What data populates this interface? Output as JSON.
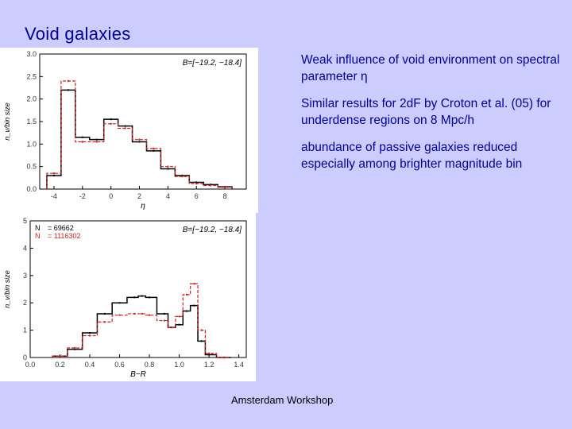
{
  "slide": {
    "title": "Void galaxies",
    "bullets": [
      "Weak influence of void environment on spectral parameter η",
      "Similar results for 2dF by Croton et al. (05) for underdense regions on 8 Mpc/h",
      "abundance of passive galaxies reduced especially among brighter magnitude bin"
    ],
    "footer": "Amsterdam Workshop"
  },
  "colors": {
    "background": "#ccccff",
    "text": "#000099",
    "series_void": "#000000",
    "series_wall": "#cc2222"
  },
  "chart_data": [
    {
      "type": "line",
      "title": "",
      "xlabel": "η",
      "ylabel": "n_v/bin size",
      "xlim": [
        -5,
        9.5
      ],
      "ylim": [
        0,
        3.0
      ],
      "xticks": [
        "-4",
        "-2",
        "0",
        "2",
        "4",
        "6",
        "8"
      ],
      "yticks": [
        "0.0",
        "0.5",
        "1.0",
        "1.5",
        "2.0",
        "2.5",
        "3.0"
      ],
      "annotation": "B=[−19.2, −18.4]",
      "x": [
        -4,
        -3,
        -2,
        -1,
        0,
        1,
        2,
        3,
        4,
        5,
        6,
        7,
        8
      ],
      "series": [
        {
          "values": [
            0.3,
            2.2,
            1.15,
            1.1,
            1.55,
            1.4,
            1.05,
            0.85,
            0.45,
            0.3,
            0.15,
            0.1,
            0.05
          ]
        },
        {
          "values": [
            0.35,
            2.4,
            1.05,
            1.05,
            1.45,
            1.35,
            1.1,
            0.9,
            0.5,
            0.28,
            0.12,
            0.08,
            0.04
          ]
        }
      ],
      "grid": false
    },
    {
      "type": "line",
      "title": "",
      "xlabel": "B−R",
      "ylabel": "n_v/bin size",
      "xlim": [
        0.0,
        1.45
      ],
      "ylim": [
        0,
        5
      ],
      "xticks": [
        "0.0",
        "0.2",
        "0.4",
        "0.6",
        "0.8",
        "1.0",
        "1.2",
        "1.4"
      ],
      "yticks": [
        "0",
        "1",
        "2",
        "3",
        "4",
        "5"
      ],
      "annotation": "B=[−19.2, −18.4]",
      "legend": [
        {
          "label": "N",
          "value": "69662"
        },
        {
          "label": "N",
          "value": "1116302"
        }
      ],
      "x": [
        0.2,
        0.3,
        0.4,
        0.5,
        0.6,
        0.7,
        0.75,
        0.8,
        0.9,
        0.95,
        1.0,
        1.05,
        1.1,
        1.15,
        1.2,
        1.3
      ],
      "series": [
        {
          "values": [
            0.05,
            0.3,
            0.9,
            1.6,
            2.0,
            2.2,
            2.25,
            2.2,
            1.6,
            1.1,
            1.2,
            1.7,
            1.9,
            0.6,
            0.1,
            0.0
          ]
        },
        {
          "values": [
            0.05,
            0.35,
            0.8,
            1.3,
            1.55,
            1.6,
            1.6,
            1.55,
            1.35,
            1.1,
            1.5,
            2.3,
            2.7,
            1.0,
            0.15,
            0.0
          ]
        }
      ],
      "grid": false
    }
  ]
}
